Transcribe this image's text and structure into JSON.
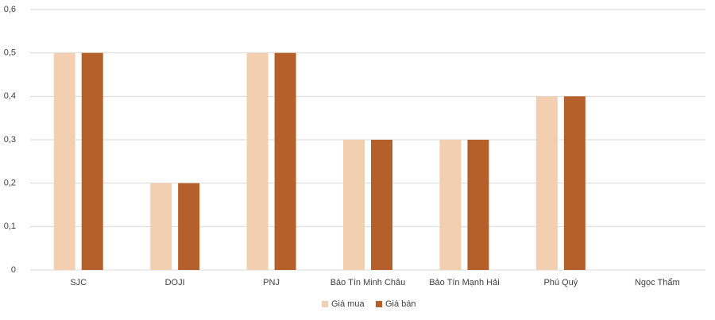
{
  "chart_data": {
    "type": "bar",
    "categories": [
      "SJC",
      "DOJI",
      "PNJ",
      "Bảo Tín Minh Châu",
      "Bảo Tín Mạnh Hải",
      "Phú Quý",
      "Ngọc Thẩm"
    ],
    "series": [
      {
        "name": "Giá mua",
        "color": "#f2cfb1",
        "values": [
          0.5,
          0.2,
          0.5,
          0.3,
          0.3,
          0.4,
          0
        ]
      },
      {
        "name": "Giá bán",
        "color": "#b5602b",
        "values": [
          0.5,
          0.2,
          0.5,
          0.3,
          0.3,
          0.4,
          0
        ]
      }
    ],
    "ylim": [
      0,
      0.6
    ],
    "yticks": [
      0,
      {
        "value": 0.1,
        "label": "0,1"
      },
      {
        "value": 0.2,
        "label": "0,2"
      },
      {
        "value": 0.3,
        "label": "0,3"
      },
      {
        "value": 0.4,
        "label": "0,4"
      },
      {
        "value": 0.5,
        "label": "0,5"
      },
      {
        "value": 0.6,
        "label": "0,6"
      }
    ],
    "grid": true,
    "legend": "bottom"
  }
}
